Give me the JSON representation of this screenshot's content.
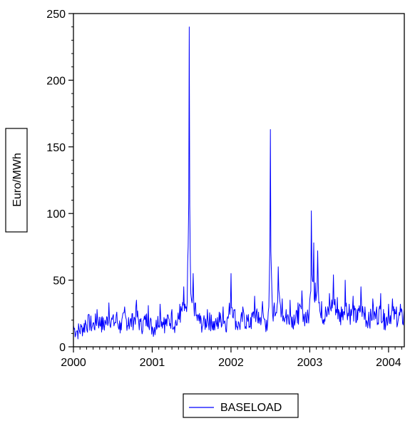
{
  "chart_data": {
    "type": "line",
    "title": "",
    "xlabel": "",
    "ylabel": "Euro/MWh",
    "xlim": [
      2000.0,
      2004.2
    ],
    "ylim": [
      0,
      250
    ],
    "x_ticks": [
      "2000",
      "2001",
      "2002",
      "2003",
      "2004"
    ],
    "y_ticks": [
      "0",
      "50",
      "100",
      "150",
      "200",
      "250"
    ],
    "grid": false,
    "legend": {
      "position": "bottom-center",
      "entries": [
        "BASELOAD"
      ]
    },
    "series": [
      {
        "name": "BASELOAD",
        "color": "#0000ff",
        "x": [
          2000.0,
          2000.05,
          2000.1,
          2000.15,
          2000.2,
          2000.25,
          2000.3,
          2000.35,
          2000.4,
          2000.45,
          2000.5,
          2000.55,
          2000.6,
          2000.65,
          2000.7,
          2000.75,
          2000.8,
          2000.85,
          2000.9,
          2000.95,
          2001.0,
          2001.05,
          2001.1,
          2001.15,
          2001.2,
          2001.25,
          2001.3,
          2001.35,
          2001.4,
          2001.43,
          2001.45,
          2001.47,
          2001.49,
          2001.52,
          2001.55,
          2001.6,
          2001.65,
          2001.7,
          2001.75,
          2001.8,
          2001.85,
          2001.9,
          2001.95,
          2002.0,
          2002.05,
          2002.1,
          2002.15,
          2002.2,
          2002.25,
          2002.3,
          2002.35,
          2002.4,
          2002.45,
          2002.48,
          2002.5,
          2002.52,
          2002.55,
          2002.6,
          2002.65,
          2002.7,
          2002.75,
          2002.8,
          2002.85,
          2002.9,
          2002.95,
          2003.0,
          2003.02,
          2003.05,
          2003.07,
          2003.1,
          2003.15,
          2003.2,
          2003.25,
          2003.3,
          2003.35,
          2003.4,
          2003.45,
          2003.5,
          2003.55,
          2003.6,
          2003.65,
          2003.7,
          2003.75,
          2003.8,
          2003.85,
          2003.9,
          2003.95,
          2004.0,
          2004.05,
          2004.1,
          2004.15,
          2004.2
        ],
        "y": [
          16,
          12,
          15,
          20,
          24,
          18,
          28,
          22,
          20,
          33,
          23,
          26,
          18,
          30,
          22,
          25,
          35,
          19,
          23,
          31,
          15,
          20,
          32,
          22,
          24,
          28,
          20,
          32,
          45,
          30,
          63,
          240,
          40,
          55,
          33,
          25,
          20,
          28,
          24,
          18,
          26,
          30,
          21,
          55,
          28,
          18,
          30,
          24,
          22,
          38,
          26,
          34,
          20,
          30,
          163,
          40,
          33,
          60,
          36,
          28,
          35,
          24,
          33,
          42,
          26,
          35,
          102,
          78,
          48,
          72,
          34,
          30,
          40,
          54,
          37,
          30,
          50,
          32,
          38,
          28,
          45,
          30,
          26,
          36,
          30,
          40,
          25,
          32,
          36,
          30,
          32,
          28
        ]
      }
    ]
  }
}
